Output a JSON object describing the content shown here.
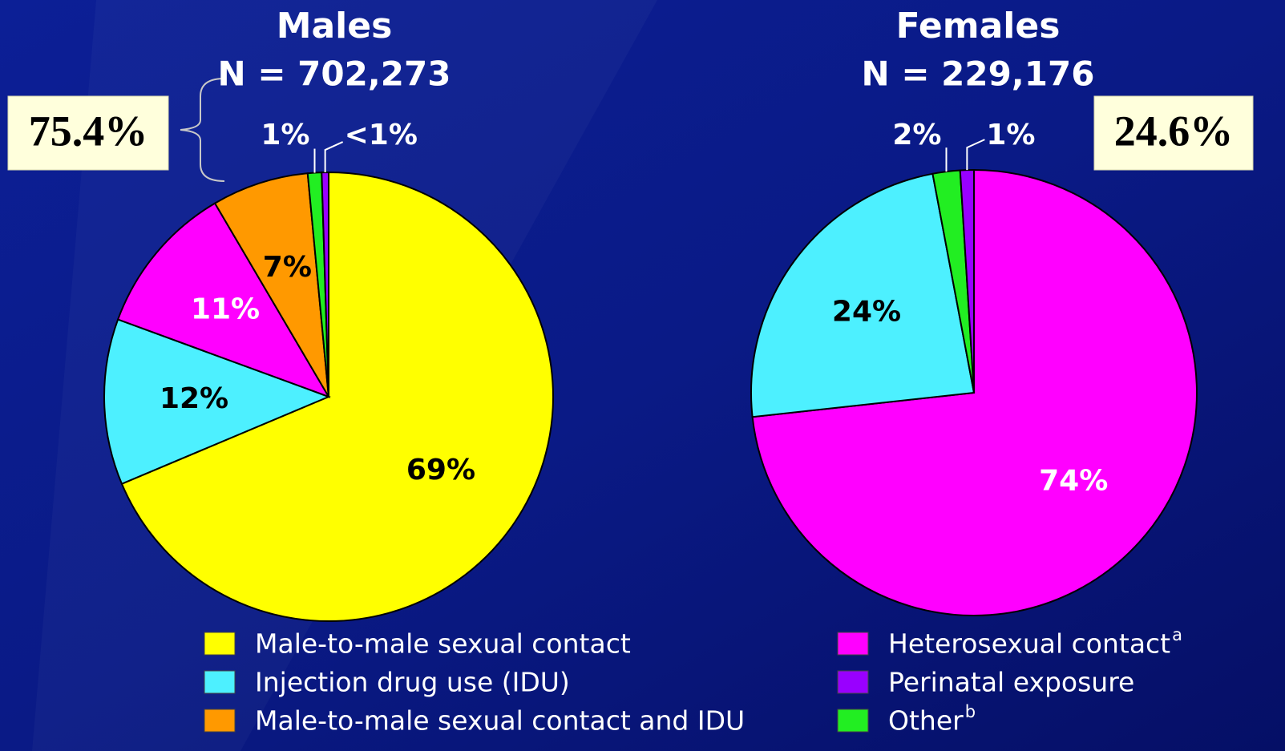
{
  "chart_data": [
    {
      "type": "pie",
      "title": "Males",
      "subtitle": "N = 702,273",
      "annotation": "75.4%",
      "values": [
        69,
        12,
        11,
        7,
        1,
        0.5
      ],
      "value_labels": [
        "69%",
        "12%",
        "11%",
        "7%",
        "1%",
        "<1%"
      ],
      "colors": [
        "#ffff00",
        "#4df0ff",
        "#ff00ff",
        "#ff9900",
        "#22ee22",
        "#9900ff"
      ],
      "legend": [
        {
          "name": "Male-to-male sexual contact",
          "color": "#ffff00"
        },
        {
          "name": "Injection drug use (IDU)",
          "color": "#4df0ff"
        },
        {
          "name": "Male-to-male sexual contact and IDU",
          "color": "#ff9900"
        }
      ]
    },
    {
      "type": "pie",
      "title": "Females",
      "subtitle": "N = 229,176",
      "annotation": "24.6%",
      "values": [
        74,
        24,
        2,
        1
      ],
      "value_labels": [
        "74%",
        "24%",
        "2%",
        "1%"
      ],
      "colors": [
        "#ff00ff",
        "#4df0ff",
        "#22ee22",
        "#9900ff"
      ],
      "legend": [
        {
          "name": "Heterosexual contact",
          "note": "a",
          "color": "#ff00ff"
        },
        {
          "name": "Perinatal exposure",
          "color": "#9900ff"
        },
        {
          "name": "Other",
          "note": "b",
          "color": "#22ee22"
        }
      ]
    }
  ]
}
